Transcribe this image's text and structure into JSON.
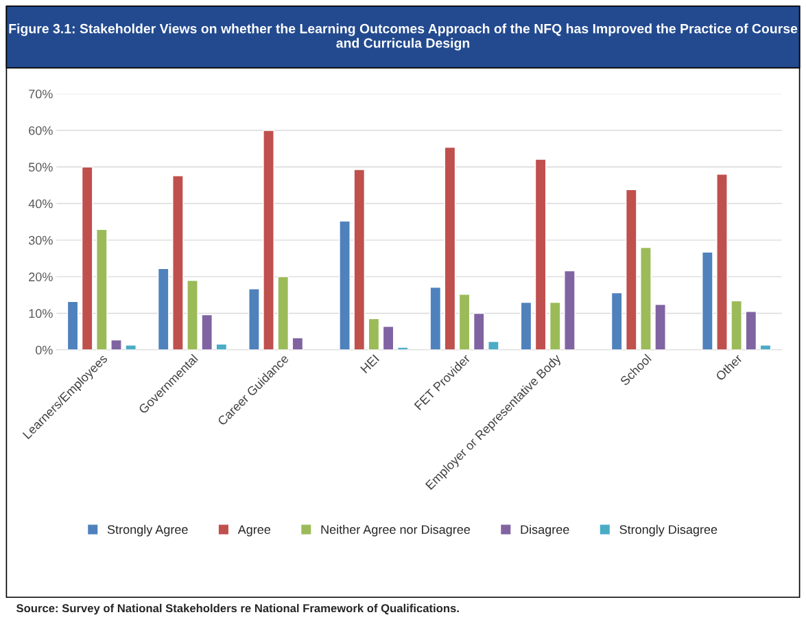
{
  "chart_data": {
    "type": "bar",
    "title": "Figure 3.1: Stakeholder Views on whether the Learning Outcomes Approach of the NFQ has Improved the Practice of Course and Curricula Design",
    "categories": [
      "Learners/Employees",
      "Governmental",
      "Career Guidance",
      "HEI",
      "FET Provider",
      "Employer or Representative Body",
      "School",
      "Other"
    ],
    "series": [
      {
        "name": "Strongly Agree",
        "color": "#4f81bd",
        "values": [
          13.2,
          22.2,
          16.7,
          35.2,
          17.1,
          13.0,
          15.6,
          26.7
        ]
      },
      {
        "name": "Agree",
        "color": "#c0504d",
        "values": [
          50.0,
          47.6,
          60.0,
          49.3,
          55.4,
          52.1,
          43.8,
          48.0
        ]
      },
      {
        "name": "Neither Agree nor Disagree",
        "color": "#9bbb59",
        "values": [
          32.9,
          19.0,
          20.0,
          8.5,
          15.2,
          13.0,
          28.0,
          13.4
        ]
      },
      {
        "name": "Disagree",
        "color": "#8064a2",
        "values": [
          2.7,
          9.6,
          3.3,
          6.4,
          10.0,
          21.6,
          12.4,
          10.5
        ]
      },
      {
        "name": "Strongly Disagree",
        "color": "#4bacc6",
        "values": [
          1.3,
          1.6,
          null,
          0.7,
          2.3,
          null,
          null,
          1.3
        ]
      }
    ],
    "ylim": [
      0,
      70
    ],
    "yticks": [
      {
        "value": 0,
        "label": "0%"
      },
      {
        "value": 10,
        "label": "10%"
      },
      {
        "value": 20,
        "label": "20%"
      },
      {
        "value": 30,
        "label": "30%"
      },
      {
        "value": 40,
        "label": "40%"
      },
      {
        "value": 50,
        "label": "50%"
      },
      {
        "value": 60,
        "label": "60%"
      },
      {
        "value": 70,
        "label": "70%"
      }
    ],
    "grid": "y",
    "legend": "bottom",
    "annotations": [
      "Source: Survey of National Stakeholders re National Framework of Qualifications."
    ]
  }
}
